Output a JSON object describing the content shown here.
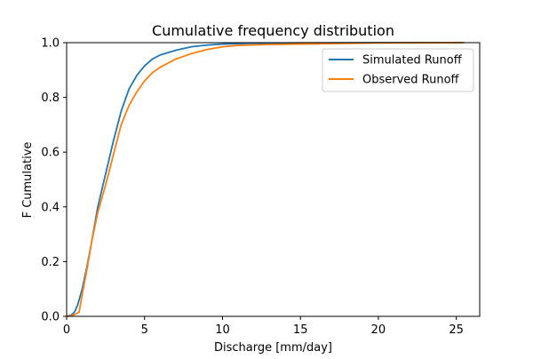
{
  "chart_data": {
    "type": "line",
    "title": "Cumulative frequency distribution",
    "xlabel": "Discharge [mm/day]",
    "ylabel": "F Cumulative",
    "xlim": [
      0,
      26.5
    ],
    "ylim": [
      0,
      1.0
    ],
    "x_ticks": [
      0,
      5,
      10,
      15,
      20,
      25
    ],
    "y_ticks": [
      0.0,
      0.2,
      0.4,
      0.6,
      0.8,
      1.0
    ],
    "x_tick_labels": [
      "0",
      "5",
      "10",
      "15",
      "20",
      "25"
    ],
    "y_tick_labels": [
      "0.0",
      "0.2",
      "0.4",
      "0.6",
      "0.8",
      "1.0"
    ],
    "grid": false,
    "legend_position": "top-right",
    "series": [
      {
        "name": "Simulated Runoff",
        "color": "#1f77b4",
        "points": [
          [
            0,
            0
          ],
          [
            0.3,
            0.005
          ],
          [
            0.5,
            0.015
          ],
          [
            0.7,
            0.04
          ],
          [
            1.0,
            0.1
          ],
          [
            1.3,
            0.18
          ],
          [
            1.6,
            0.27
          ],
          [
            2.0,
            0.4
          ],
          [
            2.5,
            0.52
          ],
          [
            3.0,
            0.64
          ],
          [
            3.5,
            0.75
          ],
          [
            4.0,
            0.83
          ],
          [
            4.5,
            0.88
          ],
          [
            5.0,
            0.915
          ],
          [
            5.5,
            0.94
          ],
          [
            6.0,
            0.955
          ],
          [
            7.0,
            0.972
          ],
          [
            8.0,
            0.985
          ],
          [
            9.0,
            0.991
          ],
          [
            10.0,
            0.995
          ],
          [
            12.0,
            0.998
          ],
          [
            15.0,
            0.999
          ],
          [
            20.0,
            1.0
          ],
          [
            25.5,
            1.0
          ]
        ]
      },
      {
        "name": "Observed Runoff",
        "color": "#ff7f0e",
        "points": [
          [
            0,
            0
          ],
          [
            0.4,
            0.003
          ],
          [
            0.8,
            0.015
          ],
          [
            1.0,
            0.08
          ],
          [
            1.3,
            0.17
          ],
          [
            1.6,
            0.27
          ],
          [
            2.0,
            0.38
          ],
          [
            2.5,
            0.48
          ],
          [
            3.0,
            0.59
          ],
          [
            3.5,
            0.7
          ],
          [
            4.0,
            0.77
          ],
          [
            4.5,
            0.82
          ],
          [
            5.0,
            0.86
          ],
          [
            5.5,
            0.89
          ],
          [
            6.0,
            0.91
          ],
          [
            7.0,
            0.94
          ],
          [
            8.0,
            0.96
          ],
          [
            9.0,
            0.975
          ],
          [
            10.0,
            0.985
          ],
          [
            11.0,
            0.99
          ],
          [
            13.0,
            0.993
          ],
          [
            15.0,
            0.995
          ],
          [
            20.0,
            0.999
          ],
          [
            25.5,
            1.0
          ]
        ]
      }
    ]
  }
}
